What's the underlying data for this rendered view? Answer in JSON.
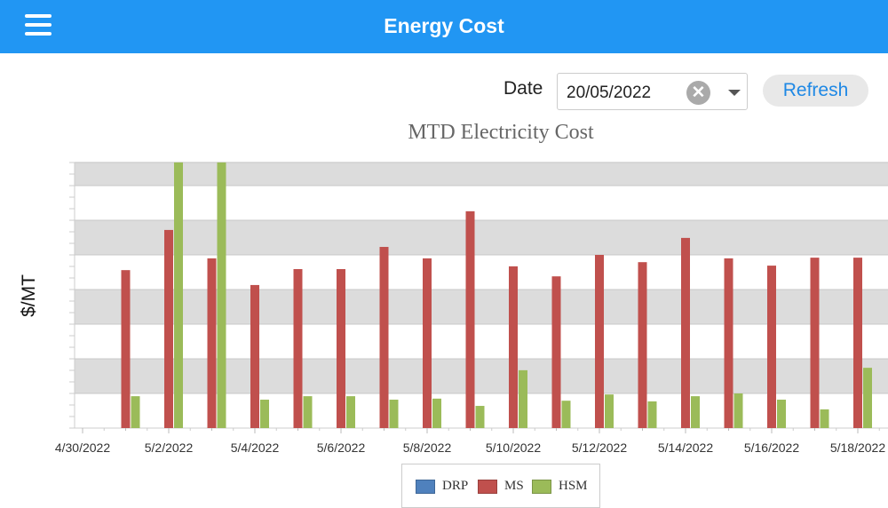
{
  "header": {
    "title": "Energy Cost",
    "menu_icon": "hamburger-icon"
  },
  "filters": {
    "date_label": "Date",
    "date_value": "20/05/2022",
    "refresh_label": "Refresh"
  },
  "chart_data": {
    "type": "bar",
    "title": "MTD Electricity Cost",
    "xlabel": "",
    "ylabel": "$/MT",
    "x_tick_labels": [
      "4/30/2022",
      "5/2/2022",
      "5/4/2022",
      "5/6/2022",
      "5/8/2022",
      "5/10/2022",
      "5/12/2022",
      "5/14/2022",
      "5/16/2022",
      "5/18/2022"
    ],
    "categories": [
      "5/1/2022",
      "5/2/2022",
      "5/3/2022",
      "5/4/2022",
      "5/5/2022",
      "5/6/2022",
      "5/7/2022",
      "5/8/2022",
      "5/9/2022",
      "5/10/2022",
      "5/11/2022",
      "5/12/2022",
      "5/13/2022",
      "5/14/2022",
      "5/15/2022",
      "5/16/2022",
      "5/17/2022",
      "5/18/2022"
    ],
    "ylim": [
      0,
      7.67
    ],
    "y_tick_labels_shown": false,
    "grid": "alternating horizontal bands",
    "legend_position": "bottom",
    "series": [
      {
        "name": "DRP",
        "color": "#4f81bd",
        "values": [
          0,
          0,
          0,
          0,
          0,
          0,
          0,
          0,
          0,
          0,
          0,
          0,
          0,
          0,
          0,
          0,
          0,
          0
        ]
      },
      {
        "name": "MS",
        "color": "#c0504d",
        "values": [
          4.56,
          5.72,
          4.9,
          4.13,
          4.59,
          4.59,
          5.23,
          4.9,
          6.26,
          4.67,
          4.38,
          5.0,
          4.79,
          5.49,
          4.9,
          4.69,
          4.92,
          4.92
        ]
      },
      {
        "name": "HSM",
        "color": "#9bbb59",
        "values": [
          0.92,
          7.67,
          7.67,
          0.82,
          0.92,
          0.92,
          0.82,
          0.85,
          0.64,
          1.67,
          0.79,
          0.97,
          0.77,
          0.92,
          1.0,
          0.82,
          0.54,
          1.74
        ]
      }
    ]
  }
}
